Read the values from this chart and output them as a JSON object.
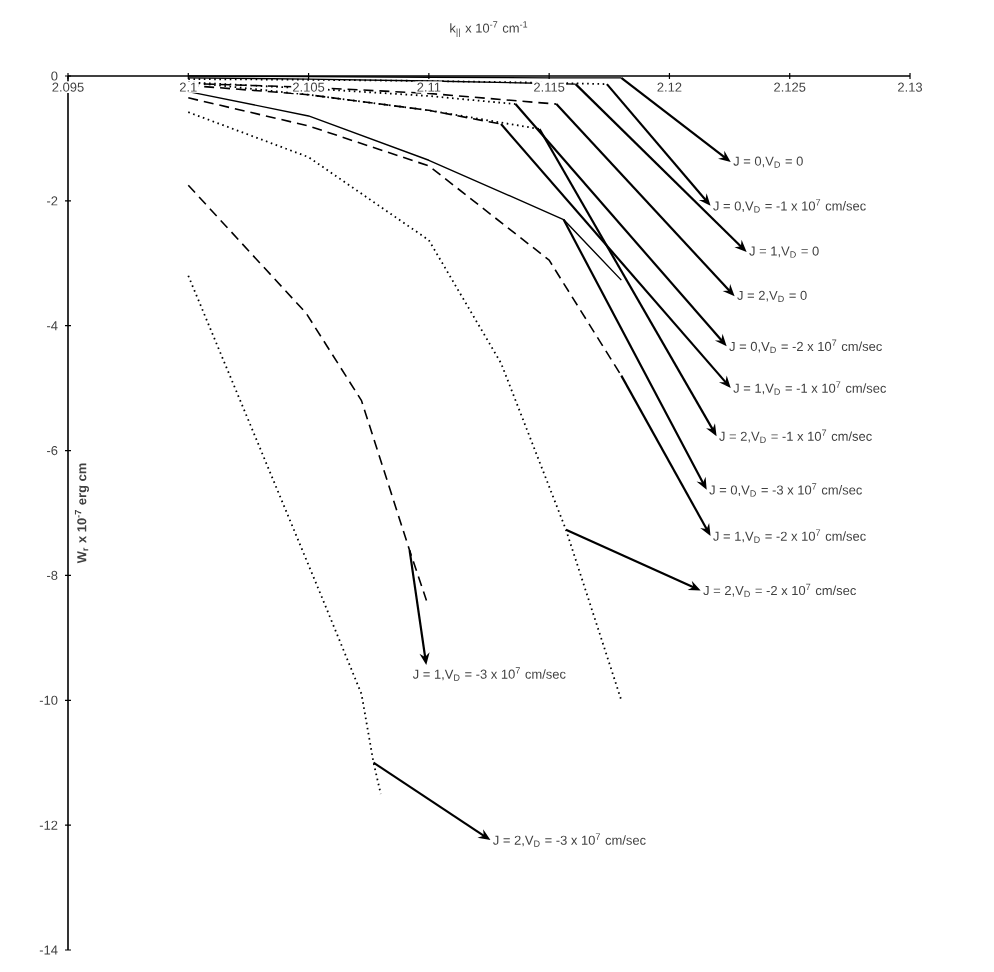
{
  "chart_data": {
    "type": "line",
    "xlabel": "k$_{||}$ x 10$^{-7}$ cm$^{-1}$",
    "ylabel": "W$_{r}$  x 10$^{-7}$ erg cm",
    "xlim": [
      2.095,
      2.13
    ],
    "ylim": [
      -14,
      0
    ],
    "xticks": [
      2.095,
      2.1,
      2.105,
      2.11,
      2.115,
      2.12,
      2.125,
      2.13
    ],
    "yticks": [
      -14,
      -12,
      -10,
      -8,
      -6,
      -4,
      -2,
      0
    ],
    "series": [
      {
        "color": "#000000",
        "line_style": "solid",
        "x": [
          2.1,
          2.105,
          2.11,
          2.115,
          2.118
        ],
        "values": [
          0,
          -0.01,
          -0.02,
          -0.03,
          -0.03
        ]
      },
      {
        "color": "#000000",
        "line_style": "dotted",
        "x": [
          2.1,
          2.105,
          2.11,
          2.115,
          2.1174
        ],
        "values": [
          -0.05,
          -0.06,
          -0.08,
          -0.11,
          -0.13
        ]
      },
      {
        "color": "#000000",
        "line_style": "solid",
        "x": [
          2.1,
          2.105,
          2.11,
          2.115,
          2.1161
        ],
        "values": [
          -0.03,
          -0.05,
          -0.08,
          -0.12,
          -0.13
        ]
      },
      {
        "color": "#000000",
        "line_style": "dashed",
        "x": [
          2.1,
          2.105,
          2.11,
          2.1153
        ],
        "values": [
          -0.12,
          -0.18,
          -0.28,
          -0.45
        ]
      },
      {
        "color": "#000000",
        "line_style": "dotted",
        "x": [
          2.1,
          2.105,
          2.11,
          2.1136
        ],
        "values": [
          -0.1,
          -0.2,
          -0.32,
          -0.45
        ]
      },
      {
        "color": "#000000",
        "line_style": "dashed",
        "x": [
          2.1,
          2.105,
          2.11,
          2.113
        ],
        "values": [
          -0.15,
          -0.3,
          -0.55,
          -0.77
        ]
      },
      {
        "color": "#000000",
        "line_style": "dotted",
        "x": [
          2.1,
          2.105,
          2.11,
          2.1146
        ],
        "values": [
          -0.1,
          -0.3,
          -0.55,
          -0.85
        ]
      },
      {
        "color": "#000000",
        "line_style": "solid",
        "x": [
          2.1,
          2.105,
          2.11,
          2.1156,
          2.118
        ],
        "values": [
          -0.25,
          -0.64,
          -1.35,
          -2.3,
          -3.27
        ]
      },
      {
        "color": "#000000",
        "line_style": "dashed",
        "x": [
          2.1,
          2.105,
          2.11,
          2.115,
          2.118
        ],
        "values": [
          -0.35,
          -0.8,
          -1.44,
          -2.95,
          -4.8
        ]
      },
      {
        "color": "#000000",
        "line_style": "dotted",
        "x": [
          2.1,
          2.105,
          2.11,
          2.113,
          2.1157,
          2.118
        ],
        "values": [
          -0.58,
          -1.3,
          -2.63,
          -4.6,
          -7.27,
          -10
        ]
      },
      {
        "color": "#000000",
        "line_style": "dashed",
        "x": [
          2.1,
          2.1049,
          2.1072,
          2.1092,
          2.1099
        ],
        "values": [
          -1.75,
          -3.8,
          -5.2,
          -7.6,
          -8.4
        ]
      },
      {
        "color": "#000000",
        "line_style": "dotted",
        "x": [
          2.1,
          2.1027,
          2.1055,
          2.1072,
          2.1077,
          2.108
        ],
        "values": [
          -3.2,
          -5.7,
          -8.3,
          -9.9,
          -11.0,
          -11.5
        ]
      }
    ],
    "annotations": [
      {
        "text": "J = 0,V$_{D}$ = 0",
        "x": 2.118,
        "y": -0.03
      },
      {
        "text": "J = 0,V$_{D}$ = -1 x 10$^{7}$ cm/sec",
        "x": 2.1174,
        "y": -0.13
      },
      {
        "text": "J = 1,V$_{D}$ = 0",
        "x": 2.1161,
        "y": -0.13
      },
      {
        "text": "J = 2,V$_{D}$ = 0",
        "x": 2.1153,
        "y": -0.45
      },
      {
        "text": "J = 0,V$_{D}$ = -2 x 10$^{7}$ cm/sec",
        "x": 2.1136,
        "y": -0.45
      },
      {
        "text": "J = 1,V$_{D}$ = -1 x 10$^{7}$ cm/sec",
        "x": 2.113,
        "y": -0.77
      },
      {
        "text": "J = 2,V$_{D}$ = -1 x 10$^{7}$ cm/sec",
        "x": 2.1146,
        "y": -0.85
      },
      {
        "text": "J = 0,V$_{D}$ = -3 x 10$^{7}$ cm/sec",
        "x": 2.1156,
        "y": -2.3
      },
      {
        "text": "J = 1,V$_{D}$ = -2 x 10$^{7}$ cm/sec",
        "x": 2.118,
        "y": -4.8
      },
      {
        "text": "J = 2,V$_{D}$ = -2 x 10$^{7}$ cm/sec",
        "x": 2.1157,
        "y": -7.27
      },
      {
        "text": "J = 1,V$_{D}$ = -3 x 10$^{7}$ cm/sec",
        "x": 2.1092,
        "y": -7.6
      },
      {
        "text": "J = 2,V$_{D}$ = -3 x 10$^{7}$ cm/sec",
        "x": 2.1077,
        "y": -11.0
      }
    ]
  }
}
